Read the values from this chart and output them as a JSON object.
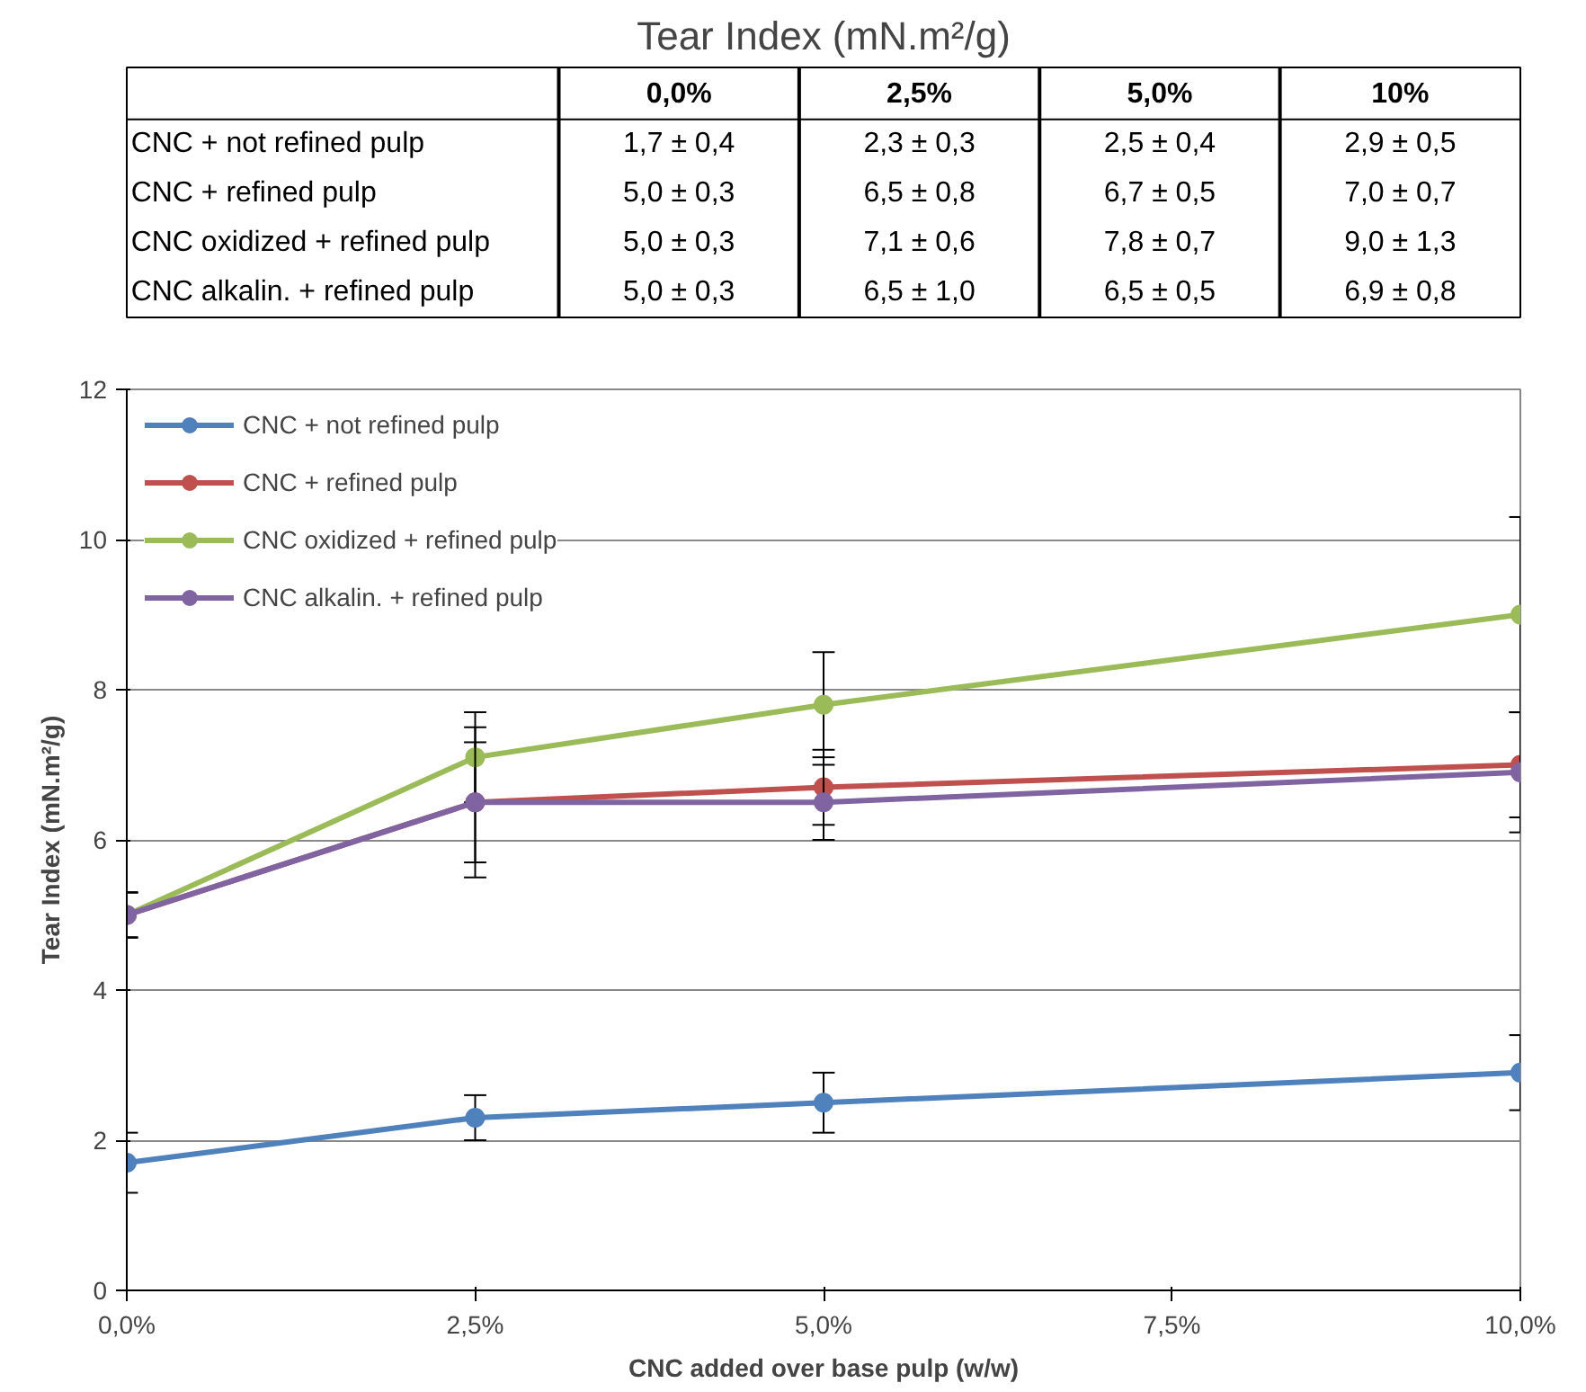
{
  "chart_data": [
    {
      "type": "other",
      "title": "Tear Index (mN.m²/g)",
      "categories": [
        "0,0%",
        "2,5%",
        "5,0%",
        "10%"
      ],
      "y_categories": [
        "CNC + not refined pulp",
        "CNC + refined pulp",
        "CNC oxidized + refined pulp",
        "CNC alkalin. + refined pulp"
      ],
      "cell_labels": [
        [
          "1,7 ± 0,4",
          "2,3 ± 0,3",
          "2,5 ± 0,4",
          "2,9 ± 0,5"
        ],
        [
          "5,0 ± 0,3",
          "6,5 ± 0,8",
          "6,7 ± 0,5",
          "7,0 ± 0,7"
        ],
        [
          "5,0 ± 0,3",
          "7,1 ± 0,6",
          "7,8 ± 0,7",
          "9,0 ± 1,3"
        ],
        [
          "5,0 ± 0,3",
          "6,5 ± 1,0",
          "6,5 ± 0,5",
          "6,9 ± 0,8"
        ]
      ]
    },
    {
      "type": "line",
      "xlabel": "CNC added over base pulp (w/w)",
      "ylabel": "Tear Index (mN.m²/g)",
      "x": [
        0,
        2.5,
        5,
        10
      ],
      "xlim": [
        0,
        10
      ],
      "xticks": [
        {
          "value": 0,
          "label": "0,0%"
        },
        {
          "value": 2.5,
          "label": "2,5%"
        },
        {
          "value": 5,
          "label": "5,0%"
        },
        {
          "value": 7.5,
          "label": "7,5%"
        },
        {
          "value": 10,
          "label": "10,0%"
        }
      ],
      "ylim": [
        0,
        12
      ],
      "yticks": [
        0,
        2,
        4,
        6,
        8,
        10,
        12
      ],
      "grid": "y",
      "legend": "top left",
      "marker": "circle",
      "line_style": "solid",
      "series": [
        {
          "name": "CNC + not refined pulp",
          "color": "#4f81bd",
          "values": [
            1.7,
            2.3,
            2.5,
            2.9
          ],
          "errors": [
            0.4,
            0.3,
            0.4,
            0.5
          ]
        },
        {
          "name": "CNC + refined pulp",
          "color": "#c0504d",
          "values": [
            5.0,
            6.5,
            6.7,
            7.0
          ],
          "errors": [
            0.3,
            0.8,
            0.5,
            0.7
          ]
        },
        {
          "name": "CNC oxidized + refined pulp",
          "color": "#9bbb59",
          "values": [
            5.0,
            7.1,
            7.8,
            9.0
          ],
          "errors": [
            0.3,
            0.6,
            0.7,
            1.3
          ]
        },
        {
          "name": "CNC alkalin. + refined pulp",
          "color": "#8064a2",
          "values": [
            5.0,
            6.5,
            6.5,
            6.9
          ],
          "errors": [
            0.3,
            1.0,
            0.5,
            0.8
          ]
        }
      ]
    }
  ]
}
